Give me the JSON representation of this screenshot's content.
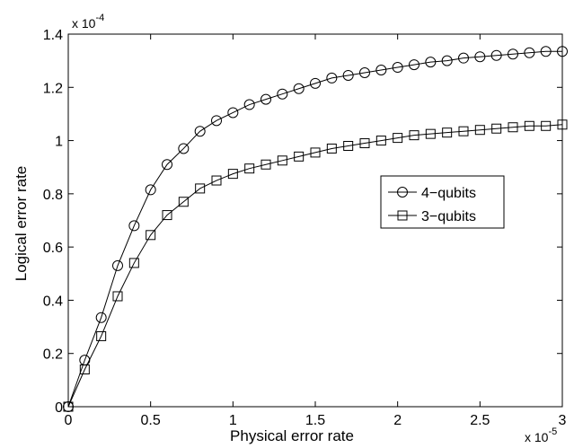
{
  "chart_data": {
    "type": "line",
    "xlabel": "Physical error rate",
    "ylabel": "Logical error rate",
    "x_exponent": "x 10",
    "x_exponent_power": "-5",
    "y_exponent": "x 10",
    "y_exponent_power": "-4",
    "xlim": [
      0,
      3
    ],
    "ylim": [
      0,
      1.4
    ],
    "x_ticks": [
      0,
      0.5,
      1,
      1.5,
      2,
      2.5,
      3
    ],
    "x_tick_labels": [
      "0",
      "0.5",
      "1",
      "1.5",
      "2",
      "2.5",
      "3"
    ],
    "y_ticks": [
      0,
      0.2,
      0.4,
      0.6,
      0.8,
      1.0,
      1.2,
      1.4
    ],
    "y_tick_labels": [
      "0",
      "0.2",
      "0.4",
      "0.6",
      "0.8",
      "1",
      "1.2",
      "1.4"
    ],
    "grid": false,
    "legend_position": "center-right",
    "x": [
      0,
      0.1,
      0.2,
      0.3,
      0.4,
      0.5,
      0.6,
      0.7,
      0.8,
      0.9,
      1.0,
      1.1,
      1.2,
      1.3,
      1.4,
      1.5,
      1.6,
      1.7,
      1.8,
      1.9,
      2.0,
      2.1,
      2.2,
      2.3,
      2.4,
      2.5,
      2.6,
      2.7,
      2.8,
      2.9,
      3.0
    ],
    "series": [
      {
        "name": "4−qubits",
        "marker": "circle",
        "values": [
          0,
          0.175,
          0.335,
          0.53,
          0.68,
          0.815,
          0.91,
          0.97,
          1.035,
          1.075,
          1.105,
          1.135,
          1.155,
          1.175,
          1.195,
          1.215,
          1.235,
          1.245,
          1.255,
          1.265,
          1.275,
          1.285,
          1.295,
          1.3,
          1.31,
          1.315,
          1.32,
          1.325,
          1.33,
          1.335,
          1.335
        ]
      },
      {
        "name": "3−qubits",
        "marker": "square",
        "values": [
          0,
          0.14,
          0.265,
          0.415,
          0.54,
          0.645,
          0.72,
          0.77,
          0.82,
          0.85,
          0.875,
          0.895,
          0.91,
          0.925,
          0.94,
          0.955,
          0.97,
          0.98,
          0.99,
          1.0,
          1.01,
          1.02,
          1.025,
          1.03,
          1.035,
          1.04,
          1.045,
          1.05,
          1.055,
          1.055,
          1.06
        ]
      }
    ]
  }
}
